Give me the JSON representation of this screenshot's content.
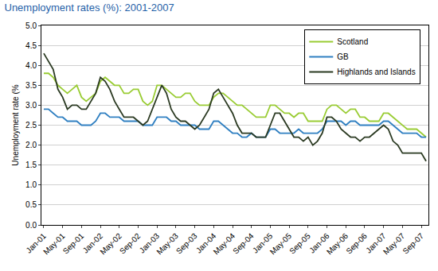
{
  "chart_data": {
    "type": "line",
    "title": "Unemployment rates (%): 2001-2007",
    "y_label": "Unemployment rate (%",
    "categories": [
      "Jan-01",
      null,
      null,
      null,
      "May-01",
      null,
      null,
      null,
      "Sep-01",
      null,
      null,
      null,
      "Jan-02",
      null,
      null,
      null,
      "May-02",
      null,
      null,
      null,
      "Sep-02",
      null,
      null,
      null,
      "Jan-03",
      null,
      null,
      null,
      "May-03",
      null,
      null,
      null,
      "Sep-03",
      null,
      null,
      null,
      "Jan-04",
      null,
      null,
      null,
      "May-04",
      null,
      null,
      null,
      "Sep-04",
      null,
      null,
      null,
      "Jan-05",
      null,
      null,
      null,
      "May-05",
      null,
      null,
      null,
      "Sep-05",
      null,
      null,
      null,
      "Jan-06",
      null,
      null,
      null,
      "May-06",
      null,
      null,
      null,
      "Sep-06",
      null,
      null,
      null,
      "Jan-07",
      null,
      null,
      null,
      "May-07",
      null,
      null,
      null,
      "Sep-07",
      null
    ],
    "series": [
      {
        "name": "Scotland",
        "color": "#99cc33",
        "values": [
          3.8,
          3.8,
          3.7,
          3.5,
          3.4,
          3.3,
          3.4,
          3.5,
          3.2,
          3.1,
          3.2,
          3.3,
          3.6,
          3.7,
          3.6,
          3.5,
          3.5,
          3.3,
          3.3,
          3.4,
          3.4,
          3.1,
          3.0,
          3.1,
          3.5,
          3.5,
          3.4,
          3.3,
          3.2,
          3.2,
          3.3,
          3.3,
          3.1,
          3.0,
          3.0,
          3.0,
          3.2,
          3.3,
          3.3,
          3.2,
          3.1,
          3.0,
          3.0,
          2.9,
          2.8,
          2.7,
          2.7,
          2.7,
          3.0,
          3.0,
          2.9,
          2.8,
          2.8,
          2.7,
          2.8,
          2.8,
          2.6,
          2.6,
          2.6,
          2.6,
          2.9,
          3.0,
          3.0,
          2.9,
          2.8,
          2.9,
          2.9,
          2.7,
          2.7,
          2.6,
          2.6,
          2.6,
          2.8,
          2.8,
          2.7,
          2.6,
          2.5,
          2.4,
          2.4,
          2.4,
          2.3,
          2.2
        ]
      },
      {
        "name": "GB",
        "color": "#2f7fc1",
        "values": [
          2.9,
          2.9,
          2.8,
          2.7,
          2.7,
          2.6,
          2.6,
          2.6,
          2.5,
          2.5,
          2.5,
          2.6,
          2.8,
          2.8,
          2.7,
          2.7,
          2.7,
          2.6,
          2.6,
          2.6,
          2.6,
          2.5,
          2.5,
          2.5,
          2.7,
          2.7,
          2.7,
          2.6,
          2.6,
          2.5,
          2.5,
          2.5,
          2.5,
          2.4,
          2.4,
          2.4,
          2.6,
          2.6,
          2.5,
          2.4,
          2.3,
          2.3,
          2.2,
          2.2,
          2.3,
          2.2,
          2.2,
          2.2,
          2.4,
          2.4,
          2.3,
          2.3,
          2.3,
          2.3,
          2.4,
          2.3,
          2.3,
          2.3,
          2.3,
          2.4,
          2.6,
          2.6,
          2.6,
          2.6,
          2.5,
          2.6,
          2.6,
          2.5,
          2.5,
          2.5,
          2.5,
          2.5,
          2.6,
          2.6,
          2.5,
          2.4,
          2.3,
          2.3,
          2.3,
          2.3,
          2.2,
          2.2
        ]
      },
      {
        "name": "Highlands and Islands",
        "color": "#2b3a22",
        "values": [
          4.3,
          4.1,
          3.9,
          3.4,
          3.2,
          2.9,
          3.0,
          3.0,
          2.9,
          2.9,
          3.1,
          3.3,
          3.7,
          3.6,
          3.4,
          3.1,
          2.9,
          2.7,
          2.7,
          2.7,
          2.6,
          2.5,
          2.6,
          2.9,
          3.2,
          3.5,
          3.3,
          2.9,
          2.7,
          2.6,
          2.6,
          2.5,
          2.4,
          2.5,
          2.7,
          2.9,
          3.3,
          3.4,
          3.2,
          3.0,
          2.8,
          2.5,
          2.3,
          2.3,
          2.3,
          2.2,
          2.2,
          2.2,
          2.5,
          2.8,
          2.8,
          2.6,
          2.4,
          2.2,
          2.2,
          2.1,
          2.2,
          2.0,
          2.1,
          2.3,
          2.7,
          2.7,
          2.6,
          2.4,
          2.3,
          2.2,
          2.2,
          2.1,
          2.2,
          2.2,
          2.3,
          2.4,
          2.5,
          2.4,
          2.1,
          2.0,
          1.8,
          1.8,
          1.8,
          1.8,
          1.8,
          1.6
        ]
      }
    ],
    "ylim": [
      0,
      5
    ],
    "yticks": [
      {
        "value": 0,
        "label": "0.0"
      },
      {
        "value": 0.5,
        "label": "0.5"
      },
      {
        "value": 1,
        "label": "1.0"
      },
      {
        "value": 1.5,
        "label": "1.5"
      },
      {
        "value": 2,
        "label": "2.0"
      },
      {
        "value": 2.5,
        "label": "2.5"
      },
      {
        "value": 3,
        "label": "3.0"
      },
      {
        "value": 3.5,
        "label": "3.5"
      },
      {
        "value": 4,
        "label": "4.0"
      },
      {
        "value": 4.5,
        "label": "4.5"
      },
      {
        "value": 5,
        "label": "5.0"
      }
    ],
    "grid": true,
    "legend": "top right"
  }
}
